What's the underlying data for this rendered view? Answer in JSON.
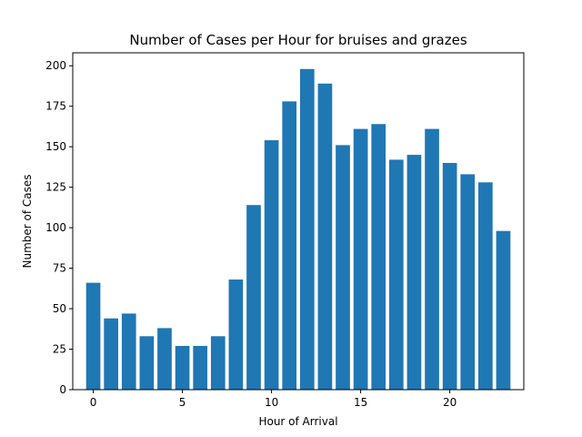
{
  "chart_data": {
    "type": "bar",
    "title": "Number of Cases per Hour for bruises and grazes",
    "xlabel": "Hour of Arrival",
    "ylabel": "Number of Cases",
    "x": [
      0,
      1,
      2,
      3,
      4,
      5,
      6,
      7,
      8,
      9,
      10,
      11,
      12,
      13,
      14,
      15,
      16,
      17,
      18,
      19,
      20,
      21,
      22,
      23
    ],
    "values": [
      66,
      44,
      47,
      33,
      38,
      27,
      27,
      33,
      68,
      114,
      154,
      178,
      198,
      189,
      151,
      161,
      164,
      142,
      145,
      161,
      140,
      133,
      128,
      98
    ],
    "xlim": [
      -1.15,
      24.15
    ],
    "ylim": [
      0,
      208
    ],
    "xticks": [
      0,
      5,
      10,
      15,
      20
    ],
    "yticks": [
      0,
      25,
      50,
      75,
      100,
      125,
      150,
      175,
      200
    ],
    "bar_color": "#1f77b4",
    "grid": false
  }
}
